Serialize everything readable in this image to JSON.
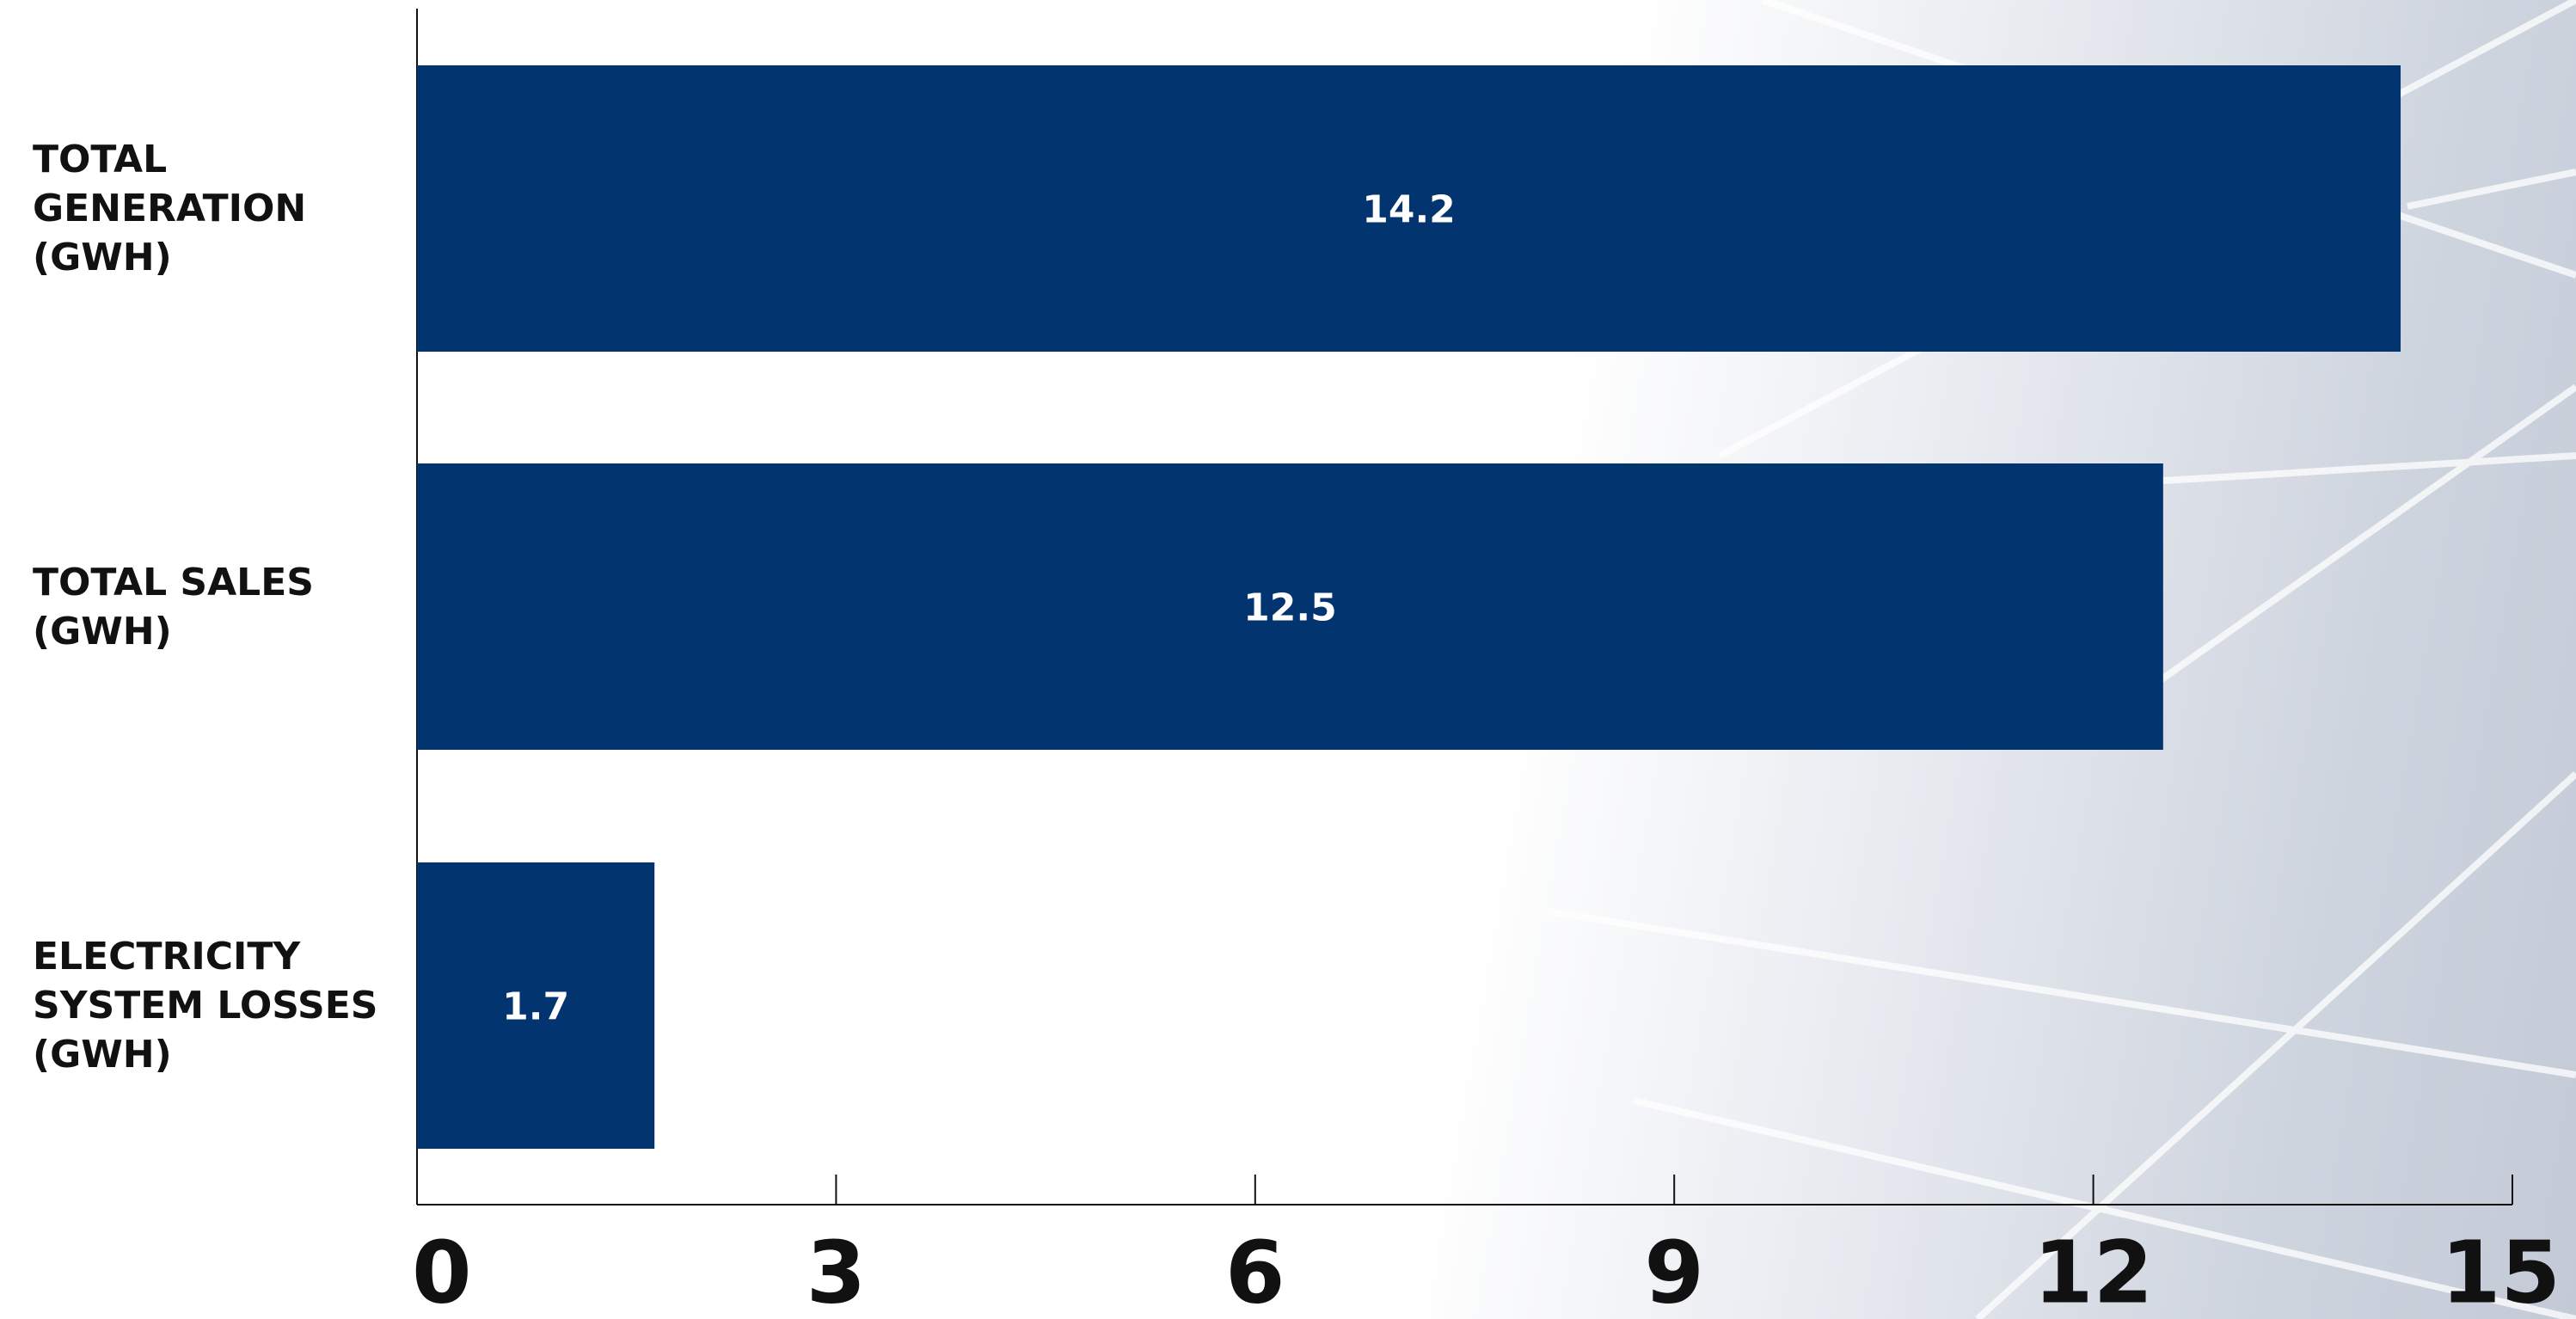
{
  "chart_data": {
    "type": "barh",
    "categories": [
      "TOTAL GENERATION (GWH)",
      "TOTAL SALES (GWH)",
      "ELECTRICITY SYSTEM LOSSES (GWH)"
    ],
    "values": [
      14.2,
      12.5,
      1.7
    ],
    "color": "#02346f",
    "xlim": [
      0,
      15
    ],
    "xticks": [
      0,
      3,
      6,
      9,
      12,
      15
    ],
    "grid": false
  }
}
